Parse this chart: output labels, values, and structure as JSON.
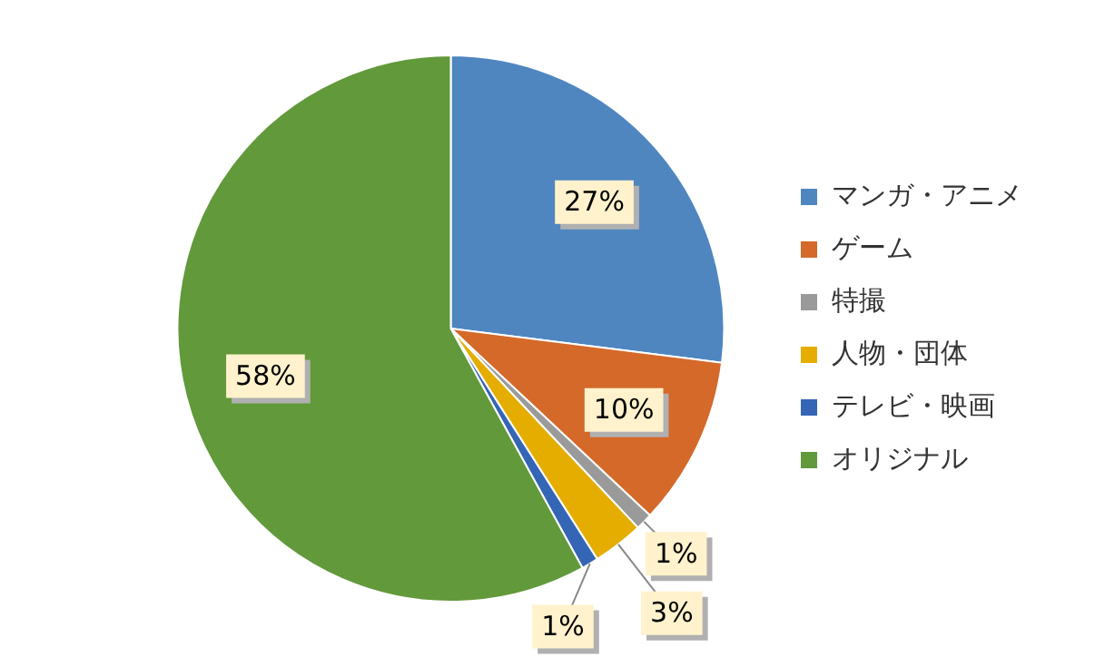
{
  "chart_data": {
    "type": "pie",
    "categories": [
      "マンガ・アニメ",
      "ゲーム",
      "特撮",
      "人物・団体",
      "テレビ・映画",
      "オリジナル"
    ],
    "values": [
      27,
      10,
      1,
      3,
      1,
      58
    ],
    "colors": [
      "#4f86c0",
      "#d4692a",
      "#9a9a9a",
      "#e4ad00",
      "#3565b5",
      "#62993b"
    ],
    "value_labels": [
      "27%",
      "10%",
      "1%",
      "3%",
      "1%",
      "58%"
    ],
    "legend": "right"
  }
}
